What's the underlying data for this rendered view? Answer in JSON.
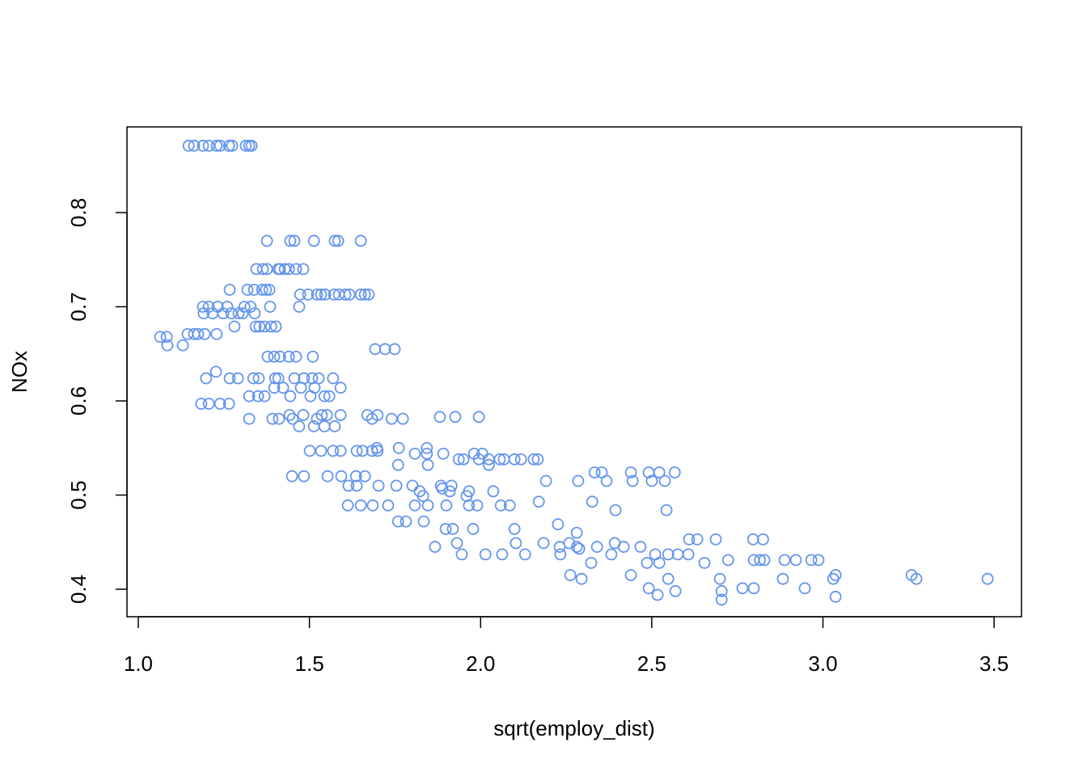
{
  "chart_data": {
    "type": "scatter",
    "x_label": "sqrt(employ_dist)",
    "y_label": "NOx",
    "color": "#6495ED",
    "xlim": [
      0.967,
      3.58
    ],
    "ylim": [
      0.3708,
      0.891
    ],
    "xticks": [
      {
        "value": 1,
        "label": "1.0"
      },
      1.5,
      {
        "value": 2,
        "label": "2.0"
      },
      2.5,
      {
        "value": 3,
        "label": "3.0"
      },
      3.5
    ],
    "yticks": [
      0.4,
      0.5,
      0.6,
      0.7,
      0.8
    ],
    "x": [
      1.147,
      1.163,
      1.189,
      1.206,
      1.229,
      1.239,
      1.265,
      1.274,
      1.314,
      1.324,
      1.331,
      1.376,
      1.444,
      1.456,
      1.513,
      1.574,
      1.584,
      1.65,
      1.345,
      1.364,
      1.376,
      1.409,
      1.414,
      1.428,
      1.44,
      1.461,
      1.482,
      1.267,
      1.319,
      1.338,
      1.362,
      1.373,
      1.383,
      1.473,
      1.496,
      1.522,
      1.534,
      1.546,
      1.572,
      1.586,
      1.605,
      1.617,
      1.65,
      1.662,
      1.673,
      1.189,
      1.206,
      1.232,
      1.26,
      1.31,
      1.328,
      1.385,
      1.47,
      1.191,
      1.217,
      1.248,
      1.272,
      1.293,
      1.305,
      1.34,
      1.281,
      1.343,
      1.354,
      1.369,
      1.388,
      1.402,
      1.144,
      1.163,
      1.175,
      1.194,
      1.229,
      1.064,
      1.083,
      1.085,
      1.13,
      1.692,
      1.721,
      1.749,
      1.378,
      1.397,
      1.414,
      1.44,
      1.461,
      1.51,
      1.227,
      1.198,
      1.267,
      1.291,
      1.336,
      1.352,
      1.4,
      1.409,
      1.456,
      1.484,
      1.508,
      1.527,
      1.569,
      1.397,
      1.423,
      1.475,
      1.515,
      1.591,
      1.324,
      1.35,
      1.369,
      1.444,
      1.503,
      1.544,
      1.558,
      1.184,
      1.206,
      1.239,
      1.265,
      1.442,
      1.482,
      1.536,
      1.551,
      1.591,
      1.669,
      1.699,
      1.881,
      1.926,
      1.995,
      1.324,
      1.392,
      1.411,
      1.451,
      1.522,
      1.683,
      1.74,
      1.773,
      1.47,
      1.513,
      1.544,
      1.574,
      1.761,
      1.843,
      1.697,
      1.501,
      1.534,
      1.569,
      1.591,
      1.638,
      1.655,
      1.683,
      1.699,
      1.808,
      1.843,
      1.891,
      1.981,
      2.005,
      1.936,
      1.95,
      1.995,
      2.024,
      2.056,
      2.068,
      2.099,
      2.118,
      2.155,
      2.167,
      1.759,
      1.846,
      2.024,
      2.333,
      2.354,
      2.439,
      2.491,
      2.522,
      2.567,
      1.449,
      1.484,
      1.553,
      1.593,
      1.636,
      1.662,
      2.191,
      2.285,
      2.368,
      2.444,
      2.5,
      2.538,
      1.614,
      1.638,
      1.702,
      1.754,
      1.801,
      1.884,
      1.915,
      1.888,
      1.822,
      1.91,
      1.966,
      2.037,
      1.832,
      1.959,
      2.17,
      2.326,
      1.612,
      1.65,
      1.685,
      1.73,
      1.808,
      1.846,
      1.9,
      1.966,
      1.99,
      2.059,
      2.085,
      2.394,
      2.543,
      1.759,
      1.782,
      1.834,
      2.226,
      1.898,
      1.919,
      1.978,
      2.099,
      2.281,
      2.609,
      2.633,
      2.687,
      2.796,
      2.825,
      1.931,
      2.103,
      2.184,
      2.259,
      2.392,
      1.867,
      2.231,
      2.281,
      2.34,
      2.418,
      2.467,
      2.288,
      1.945,
      2.014,
      2.063,
      2.13,
      2.233,
      2.382,
      2.51,
      2.548,
      2.576,
      2.607,
      2.723,
      2.798,
      2.816,
      2.829,
      2.921,
      2.966,
      2.987,
      2.888,
      2.323,
      2.486,
      2.522,
      2.654,
      2.262,
      2.439,
      3.037,
      3.259,
      2.295,
      2.548,
      2.699,
      2.883,
      3.03,
      3.273,
      3.481,
      2.491,
      2.765,
      2.798,
      2.947,
      2.569,
      2.704,
      2.517,
      3.037,
      2.704
    ],
    "values": [
      0.871,
      0.871,
      0.871,
      0.871,
      0.871,
      0.871,
      0.871,
      0.871,
      0.871,
      0.871,
      0.871,
      0.77,
      0.77,
      0.77,
      0.77,
      0.77,
      0.77,
      0.77,
      0.74,
      0.74,
      0.74,
      0.74,
      0.74,
      0.74,
      0.74,
      0.74,
      0.74,
      0.718,
      0.718,
      0.718,
      0.718,
      0.718,
      0.718,
      0.713,
      0.713,
      0.713,
      0.713,
      0.713,
      0.713,
      0.713,
      0.713,
      0.713,
      0.713,
      0.713,
      0.713,
      0.7,
      0.7,
      0.7,
      0.7,
      0.7,
      0.7,
      0.7,
      0.7,
      0.693,
      0.693,
      0.693,
      0.693,
      0.693,
      0.693,
      0.693,
      0.679,
      0.679,
      0.679,
      0.679,
      0.679,
      0.679,
      0.671,
      0.671,
      0.671,
      0.671,
      0.671,
      0.668,
      0.668,
      0.659,
      0.659,
      0.655,
      0.655,
      0.655,
      0.647,
      0.647,
      0.647,
      0.647,
      0.647,
      0.647,
      0.631,
      0.624,
      0.624,
      0.624,
      0.624,
      0.624,
      0.624,
      0.624,
      0.624,
      0.624,
      0.624,
      0.624,
      0.624,
      0.614,
      0.614,
      0.614,
      0.614,
      0.614,
      0.605,
      0.605,
      0.605,
      0.605,
      0.605,
      0.605,
      0.605,
      0.597,
      0.597,
      0.597,
      0.597,
      0.585,
      0.585,
      0.585,
      0.585,
      0.585,
      0.585,
      0.585,
      0.583,
      0.583,
      0.583,
      0.581,
      0.581,
      0.581,
      0.581,
      0.581,
      0.581,
      0.581,
      0.581,
      0.573,
      0.573,
      0.573,
      0.573,
      0.55,
      0.55,
      0.55,
      0.547,
      0.547,
      0.547,
      0.547,
      0.547,
      0.547,
      0.547,
      0.547,
      0.544,
      0.544,
      0.544,
      0.544,
      0.544,
      0.538,
      0.538,
      0.538,
      0.538,
      0.538,
      0.538,
      0.538,
      0.538,
      0.538,
      0.538,
      0.532,
      0.532,
      0.532,
      0.524,
      0.524,
      0.524,
      0.524,
      0.524,
      0.524,
      0.52,
      0.52,
      0.52,
      0.52,
      0.52,
      0.52,
      0.515,
      0.515,
      0.515,
      0.515,
      0.515,
      0.515,
      0.51,
      0.51,
      0.51,
      0.51,
      0.51,
      0.51,
      0.51,
      0.507,
      0.504,
      0.504,
      0.504,
      0.504,
      0.499,
      0.499,
      0.493,
      0.493,
      0.489,
      0.489,
      0.489,
      0.489,
      0.489,
      0.489,
      0.489,
      0.489,
      0.489,
      0.489,
      0.489,
      0.484,
      0.484,
      0.472,
      0.472,
      0.472,
      0.469,
      0.464,
      0.464,
      0.464,
      0.464,
      0.46,
      0.453,
      0.453,
      0.453,
      0.453,
      0.453,
      0.449,
      0.449,
      0.449,
      0.449,
      0.449,
      0.445,
      0.445,
      0.445,
      0.445,
      0.445,
      0.445,
      0.443,
      0.437,
      0.437,
      0.437,
      0.437,
      0.437,
      0.437,
      0.437,
      0.437,
      0.437,
      0.437,
      0.431,
      0.431,
      0.431,
      0.431,
      0.431,
      0.431,
      0.431,
      0.431,
      0.428,
      0.428,
      0.428,
      0.428,
      0.415,
      0.415,
      0.415,
      0.415,
      0.411,
      0.411,
      0.411,
      0.411,
      0.411,
      0.411,
      0.411,
      0.401,
      0.401,
      0.401,
      0.401,
      0.398,
      0.398,
      0.394,
      0.392,
      0.389
    ]
  }
}
